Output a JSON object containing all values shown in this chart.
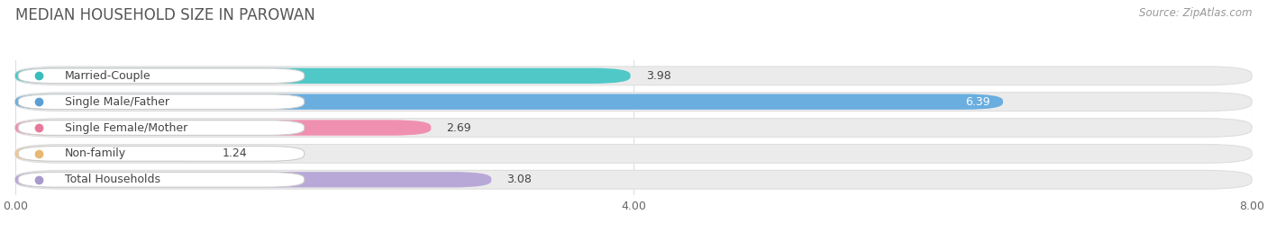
{
  "title": "MEDIAN HOUSEHOLD SIZE IN PAROWAN",
  "source": "Source: ZipAtlas.com",
  "categories": [
    "Married-Couple",
    "Single Male/Father",
    "Single Female/Mother",
    "Non-family",
    "Total Households"
  ],
  "values": [
    3.98,
    6.39,
    2.69,
    1.24,
    3.08
  ],
  "bar_colors": [
    "#50c8c8",
    "#6aaee0",
    "#f090b0",
    "#f0c890",
    "#b8a8d8"
  ],
  "bar_edge_colors": [
    "#50c8c8",
    "#6aaee0",
    "#f090b0",
    "#f0c890",
    "#b8a8d8"
  ],
  "label_dot_colors": [
    "#3bbcbc",
    "#5a9fd4",
    "#e8789a",
    "#e8b870",
    "#a898cc"
  ],
  "xlim": [
    0,
    8.0
  ],
  "xticks": [
    0.0,
    4.0,
    8.0
  ],
  "xtick_labels": [
    "0.00",
    "4.00",
    "8.00"
  ],
  "background_color": "#ffffff",
  "bar_bg_color": "#ebebeb",
  "bar_bg_border_color": "#dedede",
  "title_fontsize": 12,
  "label_fontsize": 9,
  "value_fontsize": 9,
  "source_fontsize": 8.5
}
